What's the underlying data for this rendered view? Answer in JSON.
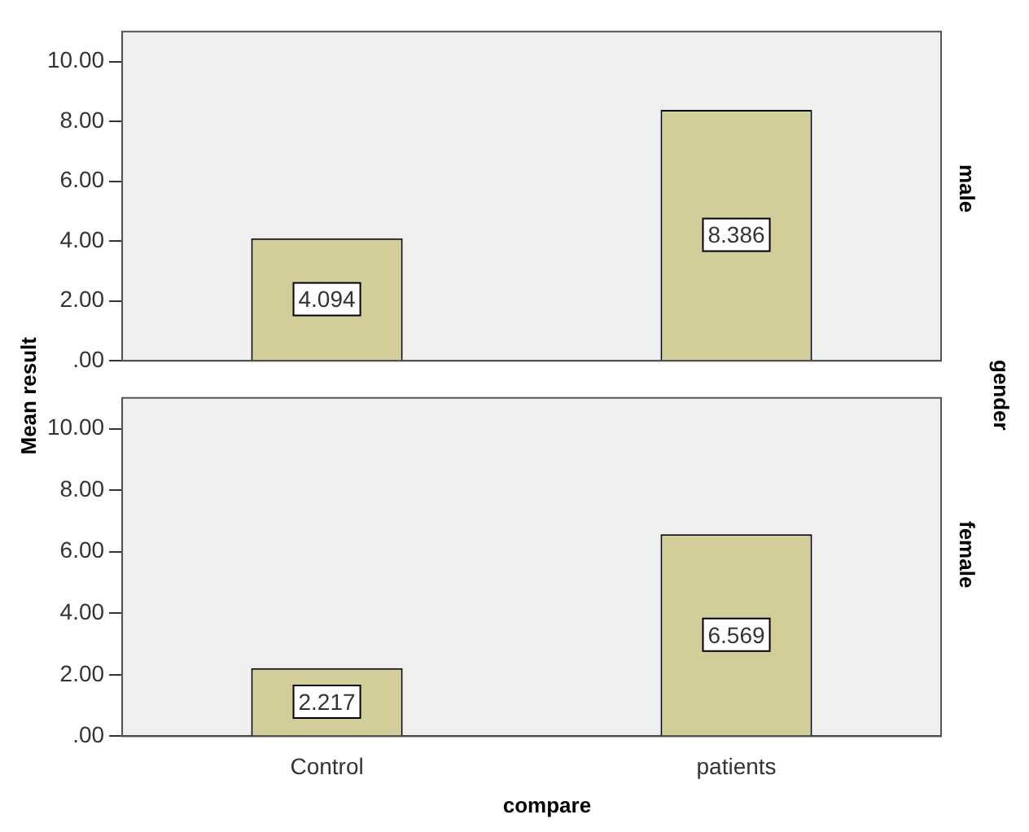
{
  "chart_data": [
    {
      "type": "bar",
      "ylabel": "Mean result",
      "annotations": [
        "male",
        "gender"
      ],
      "categories": [
        null,
        null
      ],
      "values": [
        4.094,
        8.386
      ],
      "color": "#d3ce99",
      "data_labels": true,
      "ylim": [
        0,
        11
      ],
      "yticks": [
        {
          "value": 0,
          "label": ".00"
        },
        {
          "value": 2,
          "label": "2.00"
        },
        {
          "value": 4,
          "label": "4.00"
        },
        {
          "value": 6,
          "label": "6.00"
        },
        {
          "value": 8,
          "label": "8.00"
        },
        {
          "value": 10,
          "label": "10.00"
        }
      ],
      "grid": false,
      "legend": false,
      "tick_labels": "y"
    },
    {
      "type": "bar",
      "xlabel": "compare",
      "annotations": [
        "female"
      ],
      "categories": [
        "Control",
        "patients"
      ],
      "values": [
        2.217,
        6.569
      ],
      "color": "#d3ce99",
      "data_labels": true,
      "ylim": [
        0,
        11
      ],
      "yticks": [
        {
          "value": 0,
          "label": ".00"
        },
        {
          "value": 2,
          "label": "2.00"
        },
        {
          "value": 4,
          "label": "4.00"
        },
        {
          "value": 6,
          "label": "6.00"
        },
        {
          "value": 8,
          "label": "8.00"
        },
        {
          "value": 10,
          "label": "10.00"
        }
      ],
      "grid": false,
      "legend": false
    }
  ]
}
